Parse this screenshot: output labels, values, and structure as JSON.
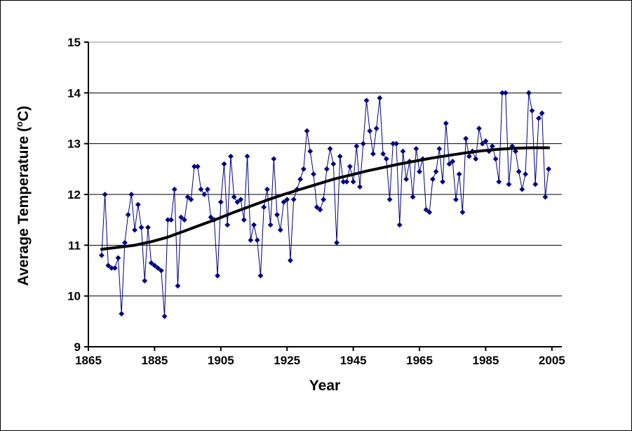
{
  "window": {
    "background": "#ffffff",
    "border_color": "#000000"
  },
  "chart_data": {
    "type": "line",
    "title": "",
    "xlabel": "Year",
    "ylabel": "Average Temperature (oC)",
    "ylabel_parts": {
      "prefix": "Average Temperature (",
      "degree": "o",
      "suffix": "C)"
    },
    "xlim": [
      1865,
      2008
    ],
    "ylim": [
      9,
      15
    ],
    "x_ticks": [
      1865,
      1885,
      1905,
      1925,
      1945,
      1965,
      1985,
      2005
    ],
    "y_ticks": [
      9,
      10,
      11,
      12,
      13,
      14,
      15
    ],
    "grid": true,
    "legend": "none",
    "marker": "diamond",
    "series": [
      {
        "name": "annual-average-temperature",
        "x_start": 1869,
        "x_step": 1,
        "values": [
          10.8,
          12.0,
          10.6,
          10.55,
          10.55,
          10.75,
          9.65,
          11.05,
          11.6,
          12.0,
          11.3,
          11.8,
          11.35,
          10.3,
          11.35,
          10.65,
          10.6,
          10.55,
          10.5,
          9.6,
          11.5,
          11.5,
          12.1,
          10.2,
          11.55,
          11.5,
          11.95,
          11.9,
          12.55,
          12.55,
          12.1,
          12.0,
          12.1,
          11.55,
          11.5,
          10.4,
          11.85,
          12.6,
          11.4,
          12.75,
          11.95,
          11.85,
          11.9,
          11.5,
          12.75,
          11.1,
          11.4,
          11.1,
          10.4,
          11.75,
          12.1,
          11.4,
          12.7,
          11.6,
          11.3,
          11.85,
          11.9,
          10.7,
          11.9,
          12.1,
          12.3,
          12.5,
          13.25,
          12.85,
          12.4,
          11.75,
          11.7,
          11.9,
          12.5,
          12.9,
          12.6,
          11.05,
          12.75,
          12.25,
          12.25,
          12.55,
          12.25,
          12.95,
          12.15,
          13.0,
          13.85,
          13.25,
          12.8,
          13.3,
          13.9,
          12.8,
          12.7,
          11.9,
          13.0,
          13.0,
          11.4,
          12.85,
          12.3,
          12.65,
          11.95,
          12.9,
          12.45,
          12.7,
          11.7,
          11.65,
          12.3,
          12.45,
          12.9,
          12.25,
          13.4,
          12.6,
          12.65,
          11.9,
          12.4,
          11.65,
          13.1,
          12.75,
          12.85,
          12.7,
          13.3,
          13.0,
          13.05,
          12.85,
          12.95,
          12.7,
          12.25,
          14.0,
          14.0,
          12.2,
          12.95,
          12.85,
          12.45,
          12.1,
          12.4,
          14.0,
          13.65,
          12.2,
          13.5,
          13.6,
          11.95,
          12.5
        ],
        "color": "#000080"
      },
      {
        "name": "trend-line",
        "x_start": 1869,
        "x_step": 5,
        "values": [
          10.92,
          10.96,
          11.0,
          11.07,
          11.16,
          11.28,
          11.4,
          11.52,
          11.65,
          11.77,
          11.89,
          12.0,
          12.1,
          12.2,
          12.3,
          12.38,
          12.46,
          12.53,
          12.6,
          12.66,
          12.72,
          12.77,
          12.82,
          12.86,
          12.89,
          12.91,
          12.92,
          12.92
        ],
        "color": "#000000"
      }
    ]
  },
  "styles": {
    "series_color": "#000080",
    "trend_color": "#000000",
    "gridline_color": "#000000",
    "top_gridline_color": "#909090",
    "axis_color": "#000000",
    "text_color": "#000000"
  }
}
